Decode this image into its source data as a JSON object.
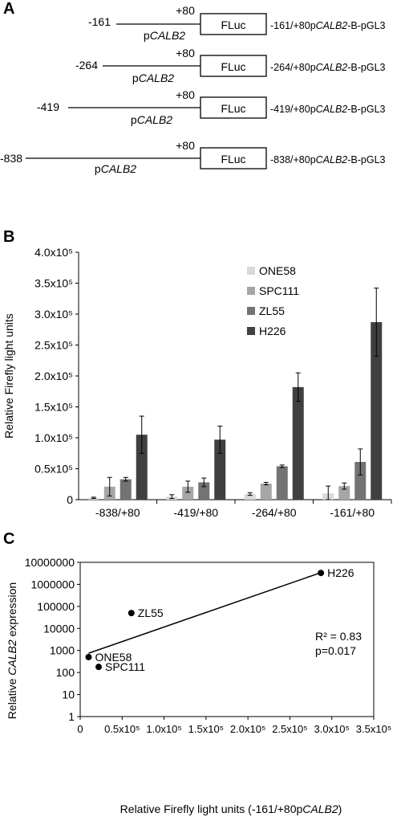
{
  "panel_a": {
    "letter": "A",
    "constructs": [
      {
        "start": "-161",
        "end": "+80",
        "promoter": "CALB2",
        "promoter_prefix": "p",
        "reporter": "FLuc",
        "name_start": "-161/+80p",
        "name_gene": "CALB2",
        "name_suffix": "-B-pGL3"
      },
      {
        "start": "-264",
        "end": "+80",
        "promoter": "CALB2",
        "promoter_prefix": "p",
        "reporter": "FLuc",
        "name_start": "-264/+80p",
        "name_gene": "CALB2",
        "name_suffix": "-B-pGL3"
      },
      {
        "start": "-419",
        "end": "+80",
        "promoter": "CALB2",
        "promoter_prefix": "p",
        "reporter": "FLuc",
        "name_start": "-419/+80p",
        "name_gene": "CALB2",
        "name_suffix": "-B-pGL3"
      },
      {
        "start": "-838",
        "end": "+80",
        "promoter": "CALB2",
        "promoter_prefix": "p",
        "reporter": "FLuc",
        "name_start": "-838/+80p",
        "name_gene": "CALB2",
        "name_suffix": "-B-pGL3"
      }
    ]
  },
  "panel_b": {
    "letter": "B"
  },
  "panel_c": {
    "letter": "C"
  },
  "chart_data": [
    {
      "type": "bar",
      "ylabel": "Relative Firefly light units",
      "ylim": [
        0,
        400000
      ],
      "yticks": [
        {
          "value": 0,
          "label": "0"
        },
        {
          "value": 50000,
          "label": "0.5x10⁵"
        },
        {
          "value": 100000,
          "label": "1.0x10⁵"
        },
        {
          "value": 150000,
          "label": "1.5x10⁵"
        },
        {
          "value": 200000,
          "label": "2.0x10⁵"
        },
        {
          "value": 250000,
          "label": "2.5x10⁵"
        },
        {
          "value": 300000,
          "label": "3.0x10⁵"
        },
        {
          "value": 350000,
          "label": "3.5x10⁵"
        },
        {
          "value": 400000,
          "label": "4.0x10⁵"
        }
      ],
      "categories": [
        "-838/+80",
        "-419/+80",
        "-264/+80",
        "-161/+80"
      ],
      "legend_position": "top-right",
      "series": [
        {
          "name": "ONE58",
          "color": "#d9d9d9",
          "values": [
            3000,
            5000,
            9000,
            10000
          ],
          "errors": [
            1000,
            3000,
            2000,
            12000
          ]
        },
        {
          "name": "SPC111",
          "color": "#a6a6a6",
          "values": [
            21000,
            21000,
            26000,
            22000
          ],
          "errors": [
            15000,
            9000,
            2000,
            5000
          ]
        },
        {
          "name": "ZL55",
          "color": "#737373",
          "values": [
            33000,
            28000,
            54000,
            61000
          ],
          "errors": [
            3000,
            7000,
            2000,
            21000
          ]
        },
        {
          "name": "H226",
          "color": "#404040",
          "values": [
            105000,
            97000,
            182000,
            287000
          ],
          "errors": [
            30000,
            22000,
            23000,
            55000
          ]
        }
      ]
    },
    {
      "type": "scatter",
      "xlabel_main": "Relative Firefly light units (-161/+80p",
      "xlabel_gene": "CALB2",
      "xlabel_end": ")",
      "ylabel_pre": "Relative ",
      "ylabel_gene": "CALB2",
      "ylabel_post": " expression",
      "y_scale": "log",
      "xlim": [
        0,
        350000
      ],
      "ylim": [
        1,
        10000000
      ],
      "xticks": [
        {
          "value": 0,
          "label": "0"
        },
        {
          "value": 50000,
          "label": "0.5x10⁵"
        },
        {
          "value": 100000,
          "label": "1.0x10⁵"
        },
        {
          "value": 150000,
          "label": "1.5x10⁵"
        },
        {
          "value": 200000,
          "label": "2.0x10⁵"
        },
        {
          "value": 250000,
          "label": "2.5x10⁵"
        },
        {
          "value": 300000,
          "label": "3.0x10⁵"
        },
        {
          "value": 350000,
          "label": "3.5x10⁵"
        }
      ],
      "yticks": [
        {
          "value": 1,
          "label": "1"
        },
        {
          "value": 10,
          "label": "10"
        },
        {
          "value": 100,
          "label": "100"
        },
        {
          "value": 1000,
          "label": "1000"
        },
        {
          "value": 10000,
          "label": "10000"
        },
        {
          "value": 100000,
          "label": "100000"
        },
        {
          "value": 1000000,
          "label": "1000000"
        },
        {
          "value": 10000000,
          "label": "10000000"
        }
      ],
      "points": [
        {
          "label": "ONE58",
          "x": 10000,
          "y": 500
        },
        {
          "label": "SPC111",
          "x": 22000,
          "y": 180
        },
        {
          "label": "ZL55",
          "x": 61000,
          "y": 50000
        },
        {
          "label": "H226",
          "x": 287000,
          "y": 3300000
        }
      ],
      "trendline": [
        {
          "x": 10000,
          "y": 750
        },
        {
          "x": 287000,
          "y": 3400000
        }
      ],
      "annotations": [
        "R² = 0.83",
        "p=0.017"
      ]
    }
  ]
}
